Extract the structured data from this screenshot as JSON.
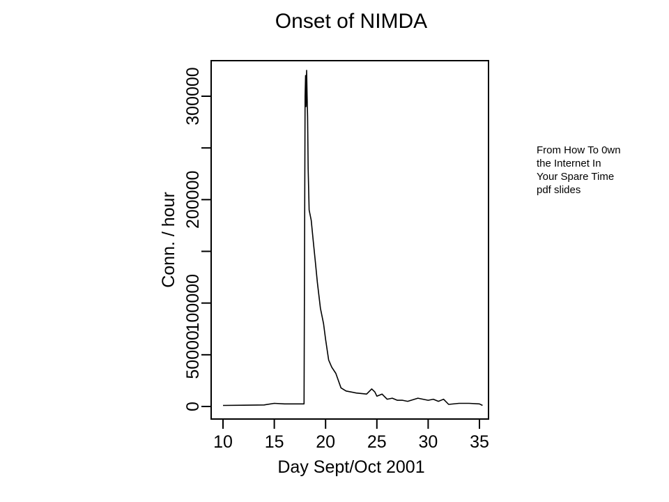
{
  "chart_data": {
    "type": "line",
    "title": "Onset of NIMDA",
    "xlabel": "Day Sept/Oct 2001",
    "ylabel": "Conn. / hour",
    "xlim": [
      10,
      35.5
    ],
    "ylim": [
      0,
      330000
    ],
    "x_ticks": [
      10,
      15,
      20,
      25,
      30,
      35
    ],
    "x_tick_labels": [
      "10",
      "15",
      "20",
      "25",
      "30",
      "35"
    ],
    "y_ticks": [
      0,
      50000,
      100000,
      150000,
      200000,
      250000,
      300000
    ],
    "y_tick_labels": [
      "0",
      "50000",
      "100000",
      "",
      "200000",
      "",
      "300000"
    ],
    "grid": false,
    "series": [
      {
        "color": "#000000",
        "x": [
          10.0,
          12.0,
          14.0,
          15.0,
          16.0,
          17.0,
          17.9,
          18.0,
          18.05,
          18.1,
          18.15,
          18.2,
          18.25,
          18.3,
          18.4,
          18.6,
          18.8,
          19.0,
          19.2,
          19.5,
          19.8,
          20.0,
          20.3,
          20.6,
          21.0,
          21.5,
          22.0,
          23.0,
          24.0,
          24.5,
          24.8,
          25.0,
          25.5,
          26.0,
          26.5,
          27.0,
          27.5,
          28.0,
          29.0,
          30.0,
          30.5,
          31.0,
          31.5,
          32.0,
          33.0,
          34.0,
          35.0,
          35.3
        ],
        "y": [
          1000,
          1200,
          1500,
          3000,
          2500,
          2500,
          2500,
          300000,
          320000,
          290000,
          325000,
          300000,
          280000,
          230000,
          190000,
          180000,
          160000,
          140000,
          120000,
          95000,
          80000,
          65000,
          45000,
          38000,
          32000,
          18000,
          15000,
          13000,
          12000,
          17000,
          14000,
          10000,
          12000,
          7000,
          8000,
          6000,
          6000,
          5000,
          8000,
          6000,
          7000,
          5000,
          7000,
          2000,
          3000,
          3000,
          2500,
          1000
        ]
      }
    ]
  },
  "note_lines": [
    "From How To 0wn",
    "the Internet In",
    "Your Spare Time",
    "pdf slides"
  ]
}
